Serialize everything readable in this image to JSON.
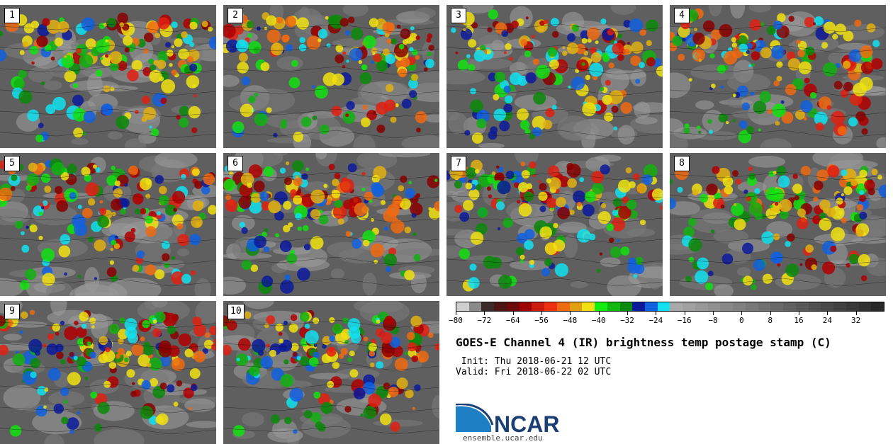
{
  "title": "GOES-E Channel 4 (IR) brightness temp postage stamp (C)",
  "init_text": " Init: Thu 2018-06-21 12 UTC",
  "valid_text": "Valid: Fri 2018-06-22 02 UTC",
  "logo": {
    "text": "NCAR",
    "url": "ensemble.ucar.edu",
    "colors": {
      "navy": "#1c3f73",
      "blue": "#1e7fc4"
    }
  },
  "panels": [
    {
      "label": "1"
    },
    {
      "label": "2"
    },
    {
      "label": "3"
    },
    {
      "label": "4"
    },
    {
      "label": "5"
    },
    {
      "label": "6"
    },
    {
      "label": "7"
    },
    {
      "label": "8"
    },
    {
      "label": "9"
    },
    {
      "label": "10"
    }
  ],
  "colorbar": {
    "min": -80,
    "max": 40,
    "tick_labels": [
      "-80",
      "-72",
      "-64",
      "-56",
      "-48",
      "-40",
      "-32",
      "-24",
      "-16",
      "-8",
      "0",
      "8",
      "16",
      "24",
      "32"
    ],
    "colors": [
      "#cfcfcf",
      "#8a8a8a",
      "#3a2a2a",
      "#4d1414",
      "#6b0a0a",
      "#a00000",
      "#cc1a0f",
      "#f03010",
      "#f06a10",
      "#e0a010",
      "#f0e010",
      "#10ee10",
      "#10b810",
      "#0a8a0a",
      "#0a1a9a",
      "#1060e0",
      "#10e0f0",
      "#a8a8a8",
      "#a0a0a0",
      "#989898",
      "#909090",
      "#888888",
      "#808080",
      "#787878",
      "#707070",
      "#686868",
      "#606060",
      "#585858",
      "#505050",
      "#484848",
      "#404040",
      "#383838",
      "#303030",
      "#282828"
    ]
  }
}
